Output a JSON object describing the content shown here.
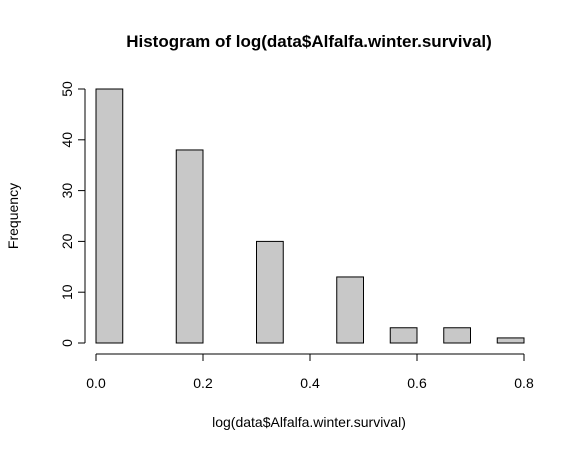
{
  "chart_data": {
    "type": "bar",
    "title": "Histogram of log(data$Alfalfa.winter.survival)",
    "xlabel": "log(data$Alfalfa.winter.survival)",
    "ylabel": "Frequency",
    "bin_edges": [
      0.0,
      0.05,
      0.1,
      0.15,
      0.2,
      0.25,
      0.3,
      0.35,
      0.4,
      0.45,
      0.5,
      0.55,
      0.6,
      0.65,
      0.7,
      0.75,
      0.8
    ],
    "values": [
      50,
      0,
      0,
      38,
      0,
      0,
      20,
      0,
      0,
      13,
      0,
      3,
      0,
      3,
      0,
      1
    ],
    "xlim": [
      0,
      0.8
    ],
    "ylim": [
      0,
      50
    ],
    "x_ticks": [
      0.0,
      0.2,
      0.4,
      0.6,
      0.8
    ],
    "x_tick_labels": [
      "0.0",
      "0.2",
      "0.4",
      "0.6",
      "0.8"
    ],
    "y_ticks": [
      0,
      10,
      20,
      30,
      40,
      50
    ],
    "y_tick_labels": [
      "0",
      "10",
      "20",
      "30",
      "40",
      "50"
    ],
    "grid": false,
    "legend": "none",
    "bar_color": "#c8c8c8"
  }
}
